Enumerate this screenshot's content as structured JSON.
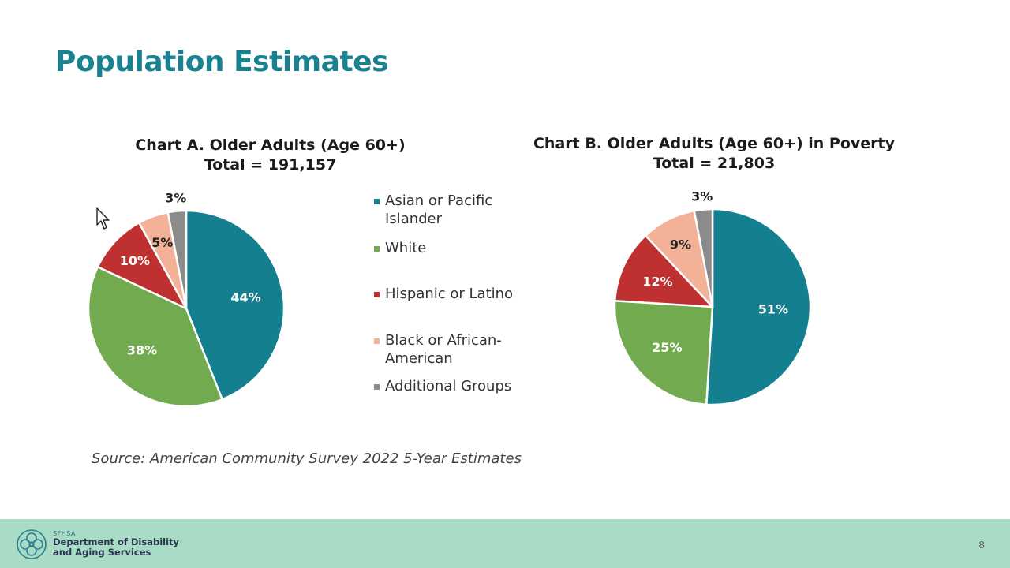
{
  "slide": {
    "title": "Population Estimates",
    "source": "Source: American Community Survey 2022 5-Year Estimates",
    "page_number": "8"
  },
  "footer": {
    "org_abbr": "SFHSA",
    "org_line1": "Department of Disability",
    "org_line2": "and Aging Services"
  },
  "legend": [
    {
      "label_lines": [
        "Asian or Pacific",
        "Islander"
      ],
      "color": "#137f8f"
    },
    {
      "label_lines": [
        "White"
      ],
      "color": "#72ab4f"
    },
    {
      "label_lines": [
        "Hispanic or Latino"
      ],
      "color": "#be3130"
    },
    {
      "label_lines": [
        "Black or African-",
        "American"
      ],
      "color": "#f3b198"
    },
    {
      "label_lines": [
        "Additional Groups"
      ],
      "color": "#8b8b8b"
    }
  ],
  "chart_data": [
    {
      "type": "pie",
      "title": "Chart A. Older Adults (Age 60+)",
      "subtitle": "Total = 191,157",
      "categories": [
        "Asian or Pacific Islander",
        "White",
        "Hispanic or Latino",
        "Black or African-American",
        "Additional Groups"
      ],
      "values": [
        44,
        38,
        10,
        5,
        3
      ],
      "labels": [
        "44%",
        "38%",
        "10%",
        "5%",
        "3%"
      ],
      "unit": "%"
    },
    {
      "type": "pie",
      "title": "Chart B. Older Adults (Age 60+) in Poverty",
      "subtitle": "Total = 21,803",
      "categories": [
        "Asian or Pacific Islander",
        "White",
        "Hispanic or Latino",
        "Black or African-American",
        "Additional Groups"
      ],
      "values": [
        51,
        25,
        12,
        9,
        3
      ],
      "labels": [
        "51%",
        "25%",
        "12%",
        "9%",
        "3%"
      ],
      "unit": "%"
    }
  ]
}
